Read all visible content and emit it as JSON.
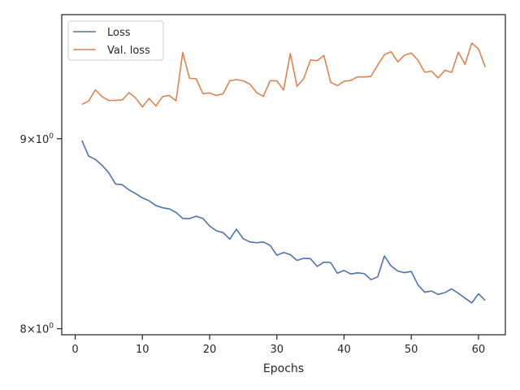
{
  "chart_data": {
    "type": "line",
    "title": "",
    "xlabel": "Epochs",
    "ylabel": "",
    "yscale": "log",
    "xlim": [
      -2.0,
      64.0
    ],
    "ylim": [
      7.97,
      9.72
    ],
    "xticks": [
      0,
      10,
      20,
      30,
      40,
      50,
      60
    ],
    "yticks": [
      {
        "value": 8,
        "base": "8",
        "exp": "0"
      },
      {
        "value": 9,
        "base": "9",
        "exp": "0"
      }
    ],
    "grid": false,
    "legend_position": "upper-left",
    "x": [
      1,
      2,
      3,
      4,
      5,
      6,
      7,
      8,
      9,
      10,
      11,
      12,
      13,
      14,
      15,
      16,
      17,
      18,
      19,
      20,
      21,
      22,
      23,
      24,
      25,
      26,
      27,
      28,
      29,
      30,
      31,
      32,
      33,
      34,
      35,
      36,
      37,
      38,
      39,
      40,
      41,
      42,
      43,
      44,
      45,
      46,
      47,
      48,
      49,
      50,
      51,
      52,
      53,
      54,
      55,
      56,
      57,
      58,
      59,
      60,
      61
    ],
    "series": [
      {
        "name": "Loss",
        "color": "#4c72b0",
        "values": [
          8.99,
          8.904,
          8.885,
          8.853,
          8.812,
          8.751,
          8.747,
          8.719,
          8.699,
          8.676,
          8.66,
          8.635,
          8.623,
          8.617,
          8.598,
          8.566,
          8.565,
          8.578,
          8.566,
          8.526,
          8.501,
          8.491,
          8.457,
          8.509,
          8.459,
          8.442,
          8.438,
          8.442,
          8.424,
          8.373,
          8.387,
          8.376,
          8.346,
          8.357,
          8.355,
          8.315,
          8.337,
          8.335,
          8.28,
          8.294,
          8.276,
          8.282,
          8.278,
          8.247,
          8.261,
          8.369,
          8.317,
          8.291,
          8.283,
          8.289,
          8.22,
          8.183,
          8.189,
          8.172,
          8.181,
          8.2,
          8.178,
          8.153,
          8.129,
          8.175,
          8.141
        ]
      },
      {
        "name": "Val. loss",
        "color": "#dd8452",
        "values": [
          9.194,
          9.213,
          9.277,
          9.238,
          9.216,
          9.217,
          9.219,
          9.261,
          9.23,
          9.179,
          9.228,
          9.185,
          9.238,
          9.245,
          9.214,
          9.495,
          9.344,
          9.341,
          9.255,
          9.259,
          9.245,
          9.254,
          9.33,
          9.336,
          9.329,
          9.309,
          9.261,
          9.24,
          9.33,
          9.329,
          9.276,
          9.489,
          9.297,
          9.342,
          9.45,
          9.446,
          9.477,
          9.321,
          9.301,
          9.327,
          9.331,
          9.352,
          9.351,
          9.355,
          9.42,
          9.482,
          9.499,
          9.439,
          9.479,
          9.491,
          9.448,
          9.379,
          9.385,
          9.346,
          9.39,
          9.378,
          9.496,
          9.425,
          9.55,
          9.515,
          9.409
        ]
      }
    ]
  }
}
